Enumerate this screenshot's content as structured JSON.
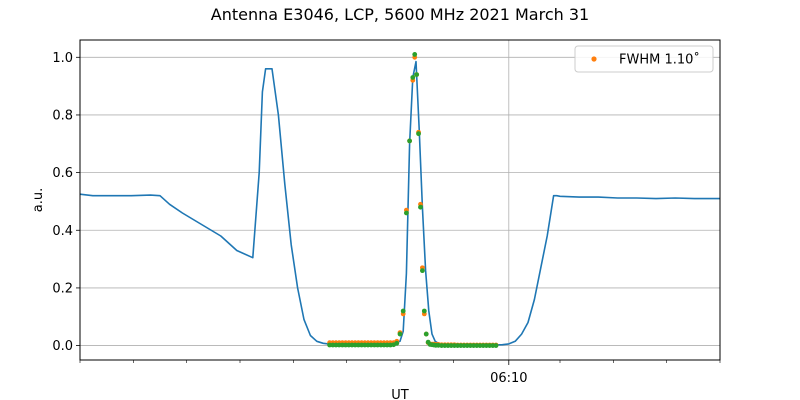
{
  "chart_data": {
    "type": "line",
    "title": "Antenna E3046, LCP, 5600 MHz 2021 March 31",
    "xlabel": "UT",
    "ylabel": "a.u.",
    "xlim": [
      0,
      1
    ],
    "ylim": [
      -0.05,
      1.06
    ],
    "grid": true,
    "legend_position": "top-right",
    "x_ticks": [
      {
        "x": 0.67,
        "label": "06:10"
      }
    ],
    "x_minor_ticks": [
      0.0,
      0.0833,
      0.1667,
      0.25,
      0.3333,
      0.4167,
      0.5,
      0.5833,
      0.75,
      0.8333,
      0.9167,
      1.0
    ],
    "y_ticks": [
      0.0,
      0.2,
      0.4,
      0.6,
      0.8,
      1.0
    ],
    "y_tick_labels": [
      "0.0",
      "0.2",
      "0.4",
      "0.6",
      "0.8",
      "1.0"
    ],
    "colors": {
      "line": "#1f77b4",
      "fwhm": "#ff7f0e",
      "samples": "#2ca02c",
      "grid": "#b0b0b0"
    },
    "series": [
      {
        "kind": "line",
        "x": [
          0.0,
          0.02,
          0.05,
          0.08,
          0.11,
          0.125,
          0.14,
          0.16,
          0.19,
          0.22,
          0.245,
          0.27,
          0.28,
          0.285,
          0.29,
          0.3,
          0.31,
          0.32,
          0.33,
          0.34,
          0.35,
          0.36,
          0.37,
          0.38,
          0.39,
          0.4,
          0.41,
          0.43,
          0.46,
          0.49,
          0.5,
          0.505,
          0.51,
          0.515,
          0.52,
          0.525,
          0.53,
          0.535,
          0.54,
          0.545,
          0.55,
          0.555,
          0.56,
          0.565,
          0.57,
          0.575,
          0.58,
          0.6,
          0.63,
          0.66,
          0.67,
          0.68,
          0.69,
          0.7,
          0.71,
          0.72,
          0.73,
          0.735,
          0.74,
          0.745,
          0.75,
          0.78,
          0.81,
          0.84,
          0.87,
          0.9,
          0.93,
          0.96,
          1.0
        ],
        "y": [
          0.525,
          0.52,
          0.52,
          0.52,
          0.522,
          0.52,
          0.49,
          0.46,
          0.42,
          0.38,
          0.33,
          0.305,
          0.6,
          0.88,
          0.96,
          0.96,
          0.8,
          0.56,
          0.35,
          0.2,
          0.09,
          0.035,
          0.015,
          0.008,
          0.005,
          0.004,
          0.005,
          0.005,
          0.005,
          0.007,
          0.015,
          0.05,
          0.25,
          0.7,
          0.93,
          0.985,
          0.75,
          0.48,
          0.26,
          0.12,
          0.04,
          0.015,
          0.008,
          0.005,
          0.003,
          0.002,
          0.002,
          0.002,
          0.002,
          0.003,
          0.006,
          0.015,
          0.04,
          0.08,
          0.16,
          0.27,
          0.38,
          0.45,
          0.52,
          0.52,
          0.518,
          0.515,
          0.515,
          0.512,
          0.512,
          0.51,
          0.512,
          0.51,
          0.51
        ]
      },
      {
        "kind": "scatter",
        "name": "FWHM 1.10$^\\circ$",
        "legend_label": "FWHM 1.10˚",
        "x": [
          0.39,
          0.395,
          0.4,
          0.405,
          0.41,
          0.415,
          0.42,
          0.425,
          0.43,
          0.435,
          0.44,
          0.445,
          0.45,
          0.455,
          0.46,
          0.465,
          0.47,
          0.475,
          0.48,
          0.485,
          0.49,
          0.495,
          0.5,
          0.505,
          0.51,
          0.515,
          0.52,
          0.523,
          0.526,
          0.529,
          0.532,
          0.535,
          0.538,
          0.541,
          0.544,
          0.547,
          0.55,
          0.553,
          0.556,
          0.56,
          0.565,
          0.57,
          0.575,
          0.58,
          0.585,
          0.59,
          0.595,
          0.6,
          0.605,
          0.61,
          0.615,
          0.62,
          0.625,
          0.63,
          0.635,
          0.64,
          0.645,
          0.65
        ],
        "y": [
          0.01,
          0.01,
          0.01,
          0.01,
          0.01,
          0.01,
          0.01,
          0.01,
          0.01,
          0.01,
          0.01,
          0.01,
          0.01,
          0.01,
          0.01,
          0.01,
          0.01,
          0.01,
          0.01,
          0.01,
          0.01,
          0.015,
          0.045,
          0.11,
          0.47,
          0.71,
          0.92,
          1.0,
          0.94,
          0.74,
          0.49,
          0.27,
          0.11,
          0.04,
          0.01,
          0.005,
          0.005,
          0.005,
          0.004,
          0.004,
          0.003,
          0.003,
          0.003,
          0.003,
          0.003,
          0.002,
          0.002,
          0.002,
          0.002,
          0.002,
          0.002,
          0.002,
          0.002,
          0.002,
          0.002,
          0.002,
          0.002,
          0.002
        ]
      },
      {
        "kind": "scatter",
        "x": [
          0.39,
          0.395,
          0.4,
          0.405,
          0.41,
          0.415,
          0.42,
          0.425,
          0.43,
          0.435,
          0.44,
          0.445,
          0.45,
          0.455,
          0.46,
          0.465,
          0.47,
          0.475,
          0.48,
          0.485,
          0.49,
          0.495,
          0.5,
          0.505,
          0.51,
          0.515,
          0.52,
          0.523,
          0.526,
          0.529,
          0.532,
          0.535,
          0.538,
          0.541,
          0.544,
          0.547,
          0.55,
          0.553,
          0.556,
          0.56,
          0.565,
          0.57,
          0.575,
          0.58,
          0.585,
          0.59,
          0.595,
          0.6,
          0.605,
          0.61,
          0.615,
          0.62,
          0.625,
          0.63,
          0.635,
          0.64,
          0.645,
          0.65
        ],
        "y": [
          0.002,
          0.002,
          0.002,
          0.002,
          0.002,
          0.002,
          0.002,
          0.002,
          0.002,
          0.002,
          0.002,
          0.002,
          0.002,
          0.002,
          0.002,
          0.002,
          0.002,
          0.002,
          0.002,
          0.002,
          0.003,
          0.008,
          0.04,
          0.12,
          0.46,
          0.71,
          0.93,
          1.01,
          0.94,
          0.735,
          0.48,
          0.26,
          0.12,
          0.04,
          0.012,
          0.004,
          0.003,
          0.002,
          0.001,
          0.001,
          0.0,
          0.0,
          0.0,
          0.0,
          0.0,
          0.0,
          0.0,
          0.0,
          0.0,
          0.0,
          0.0,
          0.0,
          0.0,
          0.0,
          0.0,
          0.0,
          0.0,
          0.0
        ]
      }
    ]
  }
}
